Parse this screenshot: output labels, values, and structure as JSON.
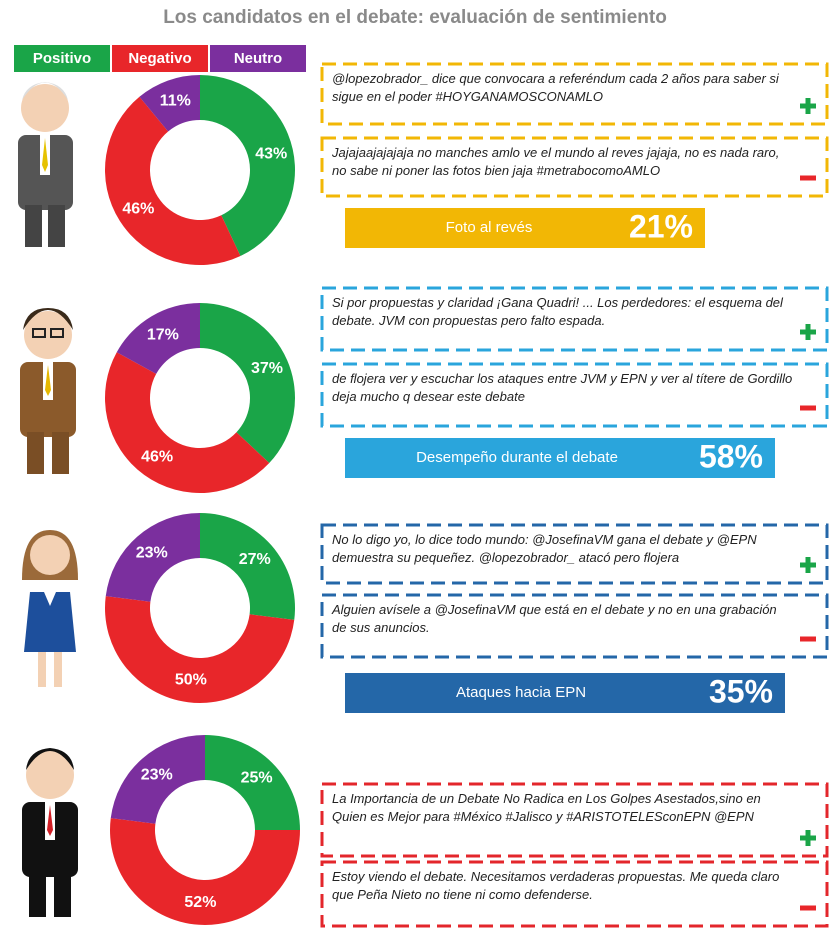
{
  "title": "Los candidatos en el debate: evaluación de sentimiento",
  "legend": {
    "labels": [
      "Positivo",
      "Negativo",
      "Neutro"
    ],
    "colors": [
      "#1aa548",
      "#e8262a",
      "#7b2f9e"
    ]
  },
  "chart_data": [
    {
      "type": "pie",
      "values": [
        43,
        46,
        11
      ],
      "value_labels": [
        "43%",
        "46%",
        "11%"
      ]
    },
    {
      "type": "pie",
      "values": [
        37,
        46,
        17
      ],
      "value_labels": [
        "37%",
        "46%",
        "17%"
      ]
    },
    {
      "type": "pie",
      "values": [
        27,
        50,
        23
      ],
      "value_labels": [
        "27%",
        "50%",
        "23%"
      ]
    },
    {
      "type": "pie",
      "values": [
        25,
        52,
        23
      ],
      "value_labels": [
        "25%",
        "52%",
        "23%"
      ]
    }
  ],
  "panels": [
    {
      "color": "#f2b705",
      "tweets": [
        "@lopezobrador_ dice que convocara a referéndum cada 2 años para saber si sigue en el poder #HOYGANAMOSCONAMLO",
        "Jajajaajajajaja no manches amlo ve el mundo al reves jajaja, no es nada raro, no sabe ni poner las fotos bien jaja #metrabocomoAMLO"
      ],
      "banner": {
        "label": "Foto al revés",
        "value": "21%"
      }
    },
    {
      "color": "#2aa5dc",
      "tweets": [
        "Si por propuestas y claridad ¡Gana Quadri! ... Los perdedores: el esquema del debate. JVM con propuestas pero falto espada.",
        "de flojera ver y escuchar los ataques entre JVM y EPN y ver al títere de Gordillo deja mucho q desear este debate"
      ],
      "banner": {
        "label": "Desempeño durante el debate",
        "value": "58%"
      }
    },
    {
      "color": "#2467a8",
      "tweets": [
        "No lo digo yo, lo dice todo mundo: @JosefinaVM gana el debate y @EPN demuestra su pequeñez. @lopezobrador_ atacó pero flojera",
        "Alguien avísele a @JosefinaVM que está en el debate y no en una grabación de sus anuncios."
      ],
      "banner": {
        "label": "Ataques hacia EPN",
        "value": "35%"
      }
    },
    {
      "color": "#e3262b",
      "tweets": [
        "La Importancia de un Debate No Radica en Los Golpes Asestados,sino en Quien es Mejor para #México #Jalisco y #ARISTOTELESconEPN @EPN",
        "Estoy viendo el debate. Necesitamos verdaderas propuestas. Me queda claro que Peña Nieto no tiene ni como defenderse."
      ]
    }
  ]
}
